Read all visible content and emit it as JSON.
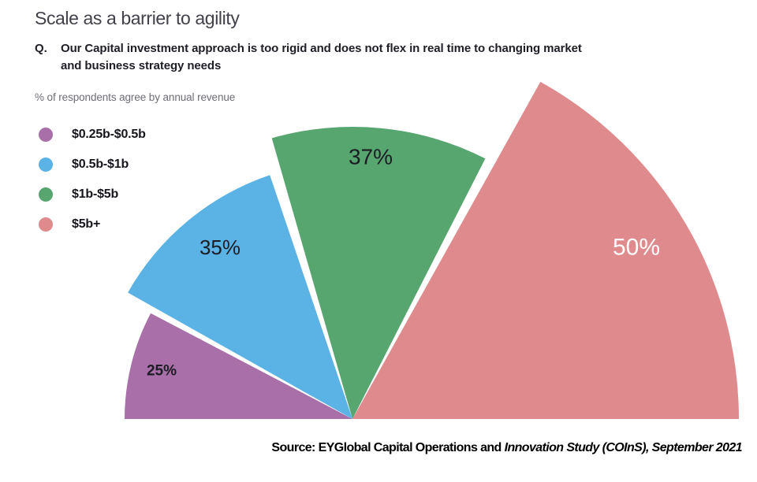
{
  "header": {
    "title": "Scale as a barrier to agility",
    "question_prefix": "Q.",
    "question_lines": [
      "Our Capital investment approach is too rigid and does not flex in real time to changing market",
      "and business strategy needs"
    ]
  },
  "legend": {
    "caption": "% of respondents agree by annual revenue",
    "items": [
      {
        "label": "$0.25b-$0.5b",
        "color": "#a86fa8"
      },
      {
        "label": "$0.5b-$1b",
        "color": "#5bb2e5"
      },
      {
        "label": "$1b-$5b",
        "color": "#57a56f"
      },
      {
        "label": "$5b+",
        "color": "#df8b8d"
      }
    ]
  },
  "chart_data": {
    "type": "pie",
    "variant": "fan (half-pie, radius and angle proportional to value)",
    "title": "Scale as a barrier to agility",
    "question": "Q. Our Capital investment approach is too rigid and does not flex in real time to changing market and business strategy needs",
    "unit_note": "% of respondents agree by annual revenue",
    "categories": [
      "$0.25b-$0.5b",
      "$0.5b-$1b",
      "$1b-$5b",
      "$5b+"
    ],
    "values": [
      25,
      35,
      37,
      50
    ],
    "labels": [
      "25%",
      "35%",
      "37%",
      "50%"
    ],
    "colors": [
      "#a86fa8",
      "#5bb2e5",
      "#57a56f",
      "#df8b8d"
    ],
    "label_text_colors": [
      "#1c1c24",
      "#1c1c24",
      "#1c1c24",
      "#ffffff"
    ],
    "legend_position": "top-left",
    "layout": {
      "center": [
        447,
        532
      ],
      "slices": [
        {
          "start_deg": 152.3,
          "end_deg": 180.0,
          "radius": 289,
          "label_xy": [
            205,
            471
          ],
          "label_size": 19,
          "label_weight": 600
        },
        {
          "start_deg": 108.7,
          "end_deg": 150.6,
          "radius": 327,
          "label_xy": [
            279,
            314
          ],
          "label_size": 26,
          "label_weight": 400
        },
        {
          "start_deg": 63.0,
          "end_deg": 106.0,
          "radius": 371,
          "label_xy": [
            470,
            199
          ],
          "label_size": 28,
          "label_weight": 400
        },
        {
          "start_deg": 0.0,
          "end_deg": 60.9,
          "radius": 490,
          "label_xy": [
            807,
            314
          ],
          "label_size": 30,
          "label_weight": 400
        }
      ]
    }
  },
  "source": {
    "prefix": "Source: EYGlobal Capital Operations and ",
    "italic": "Innovation Study (COInS), September 2021"
  }
}
